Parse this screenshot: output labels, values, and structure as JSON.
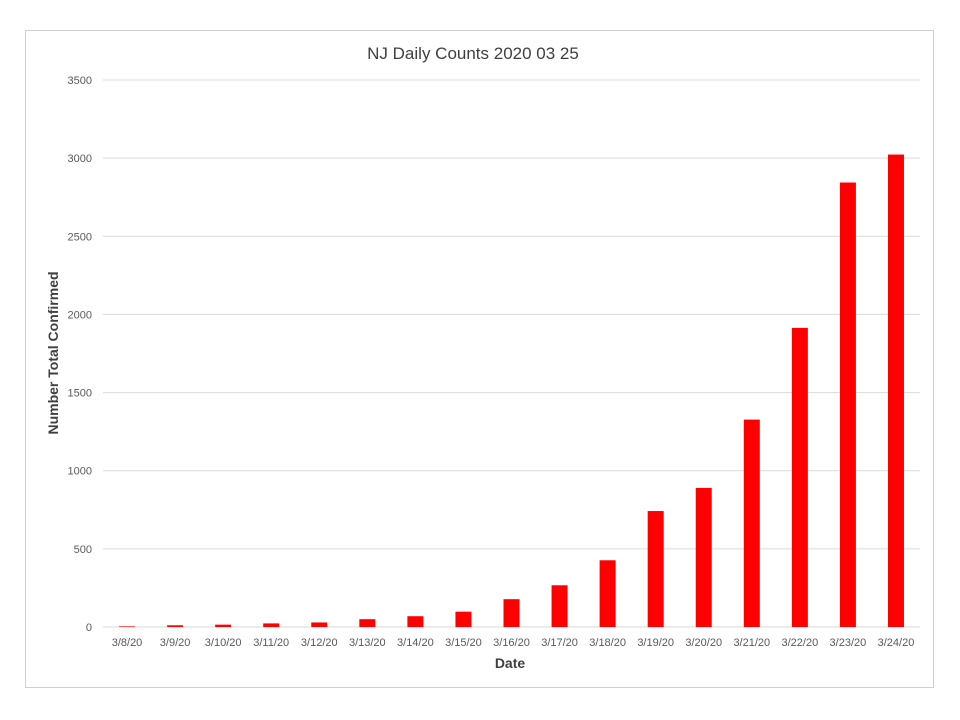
{
  "chart_data": {
    "type": "bar",
    "title": "NJ Daily Counts 2020 03 25",
    "xlabel": "Date",
    "ylabel": "Number Total Confirmed",
    "ylim": [
      0,
      3500
    ],
    "yticks": [
      0,
      500,
      1000,
      1500,
      2000,
      2500,
      3000,
      3500
    ],
    "grid": true,
    "legend": "none",
    "bar_color": "#ff0000",
    "categories": [
      "3/8/20",
      "3/9/20",
      "3/10/20",
      "3/11/20",
      "3/12/20",
      "3/13/20",
      "3/14/20",
      "3/15/20",
      "3/16/20",
      "3/17/20",
      "3/18/20",
      "3/19/20",
      "3/20/20",
      "3/21/20",
      "3/22/20",
      "3/23/20",
      "3/24/20"
    ],
    "values": [
      4,
      11,
      15,
      23,
      29,
      50,
      69,
      98,
      178,
      267,
      427,
      742,
      890,
      1327,
      1914,
      2844,
      3023
    ]
  }
}
